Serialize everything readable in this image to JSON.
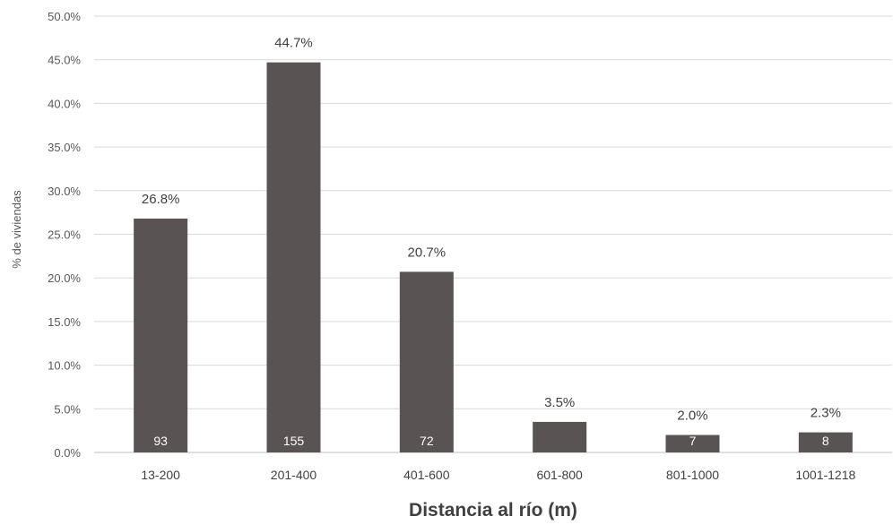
{
  "chart_data": {
    "type": "bar",
    "categories": [
      "13-200",
      "201-400",
      "401-600",
      "601-800",
      "801-1000",
      "1001-1218"
    ],
    "values": [
      26.8,
      44.7,
      20.7,
      3.5,
      2.0,
      2.3
    ],
    "data_labels": [
      "26.8%",
      "44.7%",
      "20.7%",
      "3.5%",
      "2.0%",
      "2.3%"
    ],
    "counts": [
      "93",
      "155",
      "72",
      "",
      "7",
      "8"
    ],
    "title": "",
    "xlabel": "Distancia al río (m)",
    "ylabel": "% de viviendas",
    "ylim": [
      0,
      50
    ],
    "yticks": [
      0,
      5,
      10,
      15,
      20,
      25,
      30,
      35,
      40,
      45,
      50
    ],
    "ytick_labels": [
      "0.0%",
      "5.0%",
      "10.0%",
      "15.0%",
      "20.0%",
      "25.0%",
      "30.0%",
      "35.0%",
      "40.0%",
      "45.0%",
      "50.0%"
    ],
    "grid": true,
    "legend": "none",
    "colors": {
      "bar": "#595353",
      "grid": "#d9d9d9",
      "text": "#404040"
    }
  }
}
